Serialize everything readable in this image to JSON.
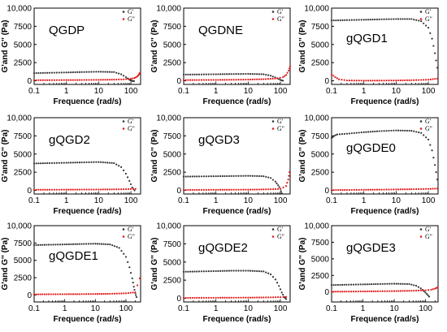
{
  "chart_data": [
    {
      "type": "scatter",
      "title": "QGDP",
      "xlabel": "Frequence (rad/s)",
      "ylabel": "G'and G'' (Pa)",
      "xscale": "log",
      "xlim": [
        0.1,
        200
      ],
      "ylim": [
        -500,
        10000
      ],
      "x_ticks": [
        "0.1",
        "1",
        "10",
        "100"
      ],
      "y_ticks": [
        "0",
        "2500",
        "5000",
        "7500",
        "10,000"
      ],
      "legend": "top-right",
      "series": [
        {
          "name": "G'",
          "color": "#333333",
          "x": [
            0.1,
            0.3,
            1,
            3,
            10,
            30,
            50,
            70,
            90,
            100,
            110,
            125
          ],
          "y": [
            1050,
            1100,
            1150,
            1200,
            1250,
            1200,
            900,
            500,
            150,
            50,
            -20,
            -40
          ]
        },
        {
          "name": "G''",
          "color": "#e31a1c",
          "x": [
            0.1,
            0.3,
            1,
            3,
            10,
            30,
            60,
            100,
            130,
            160,
            180,
            190
          ],
          "y": [
            80,
            90,
            100,
            110,
            130,
            160,
            200,
            280,
            380,
            600,
            900,
            1100
          ]
        }
      ]
    },
    {
      "type": "scatter",
      "title": "QGDNE",
      "xlabel": "Frequence (rad/s)",
      "ylabel": "G'and G'' (Pa)",
      "xscale": "log",
      "xlim": [
        0.1,
        200
      ],
      "ylim": [
        -500,
        10000
      ],
      "x_ticks": [
        "0.1",
        "1",
        "10",
        "100"
      ],
      "y_ticks": [
        "0",
        "2500",
        "5000",
        "7500",
        "10,000"
      ],
      "legend": "top-right",
      "series": [
        {
          "name": "G'",
          "color": "#333333",
          "x": [
            0.1,
            0.3,
            1,
            3,
            10,
            30,
            50,
            80,
            100,
            120
          ],
          "y": [
            850,
            870,
            900,
            930,
            950,
            900,
            700,
            350,
            120,
            10
          ]
        },
        {
          "name": "G''",
          "color": "#e31a1c",
          "x": [
            0.1,
            0.3,
            1,
            3,
            10,
            30,
            80,
            120,
            150,
            180,
            200
          ],
          "y": [
            100,
            110,
            120,
            140,
            170,
            220,
            320,
            500,
            800,
            1400,
            2000
          ]
        }
      ]
    },
    {
      "type": "scatter",
      "title": "gQGD1",
      "xlabel": "Frequence (rad/s)",
      "ylabel": "G'and G'' (Pa)",
      "xscale": "log",
      "xlim": [
        0.1,
        200
      ],
      "ylim": [
        -500,
        10000
      ],
      "x_ticks": [
        "0.1",
        "1",
        "10",
        "100"
      ],
      "y_ticks": [
        "0",
        "2500",
        "5000",
        "7500",
        "10,000"
      ],
      "legend": "top-right",
      "series": [
        {
          "name": "G'",
          "color": "#333333",
          "x": [
            0.1,
            0.3,
            1,
            3,
            10,
            30,
            60,
            100,
            130,
            160,
            190
          ],
          "y": [
            8300,
            8350,
            8400,
            8450,
            8500,
            8500,
            8200,
            7300,
            5800,
            3800,
            1800
          ]
        },
        {
          "name": "G''",
          "color": "#e31a1c",
          "x": [
            0.1,
            0.13,
            0.17,
            0.3,
            1,
            3,
            10,
            30,
            100,
            190
          ],
          "y": [
            900,
            500,
            200,
            50,
            20,
            30,
            50,
            80,
            150,
            300
          ]
        }
      ]
    },
    {
      "type": "scatter",
      "title": "gQGD2",
      "xlabel": "Frequence (rad/s)",
      "ylabel": "G'and G'' (Pa)",
      "xscale": "log",
      "xlim": [
        0.1,
        200
      ],
      "ylim": [
        -500,
        10000
      ],
      "x_ticks": [
        "0.1",
        "1",
        "10",
        "100"
      ],
      "y_ticks": [
        "0",
        "2500",
        "5000",
        "7500",
        "10,000"
      ],
      "legend": "top-right",
      "series": [
        {
          "name": "G'",
          "color": "#333333",
          "x": [
            0.1,
            0.3,
            1,
            3,
            10,
            30,
            50,
            70,
            90,
            110,
            130
          ],
          "y": [
            3700,
            3750,
            3800,
            3850,
            3900,
            3750,
            3200,
            2300,
            1300,
            400,
            0
          ]
        },
        {
          "name": "G''",
          "color": "#e31a1c",
          "x": [
            0.1,
            0.3,
            1,
            3,
            10,
            30,
            100,
            140
          ],
          "y": [
            80,
            90,
            100,
            110,
            120,
            140,
            180,
            220
          ]
        }
      ]
    },
    {
      "type": "scatter",
      "title": "gQGD3",
      "xlabel": "Frequence (rad/s)",
      "ylabel": "G'and G'' (Pa)",
      "xscale": "log",
      "xlim": [
        0.1,
        200
      ],
      "ylim": [
        -500,
        10000
      ],
      "x_ticks": [
        "0.1",
        "1",
        "10",
        "100"
      ],
      "y_ticks": [
        "0",
        "2500",
        "5000",
        "7500",
        "10,000"
      ],
      "legend": "top-right",
      "series": [
        {
          "name": "G'",
          "color": "#333333",
          "x": [
            0.1,
            0.3,
            1,
            3,
            10,
            30,
            50,
            70,
            85,
            100,
            110
          ],
          "y": [
            1900,
            1920,
            1950,
            1970,
            2000,
            1950,
            1700,
            1200,
            700,
            200,
            -400
          ]
        },
        {
          "name": "G''",
          "color": "#e31a1c",
          "x": [
            0.1,
            0.3,
            1,
            3,
            10,
            30,
            100,
            150,
            175,
            190
          ],
          "y": [
            60,
            70,
            80,
            90,
            100,
            130,
            200,
            600,
            1500,
            2500
          ]
        }
      ]
    },
    {
      "type": "scatter",
      "title": "gQGDE0",
      "xlabel": "Frequence (rad/s)",
      "ylabel": "G'and G'' (Pa)",
      "xscale": "log",
      "xlim": [
        0.1,
        200
      ],
      "ylim": [
        -500,
        10000
      ],
      "x_ticks": [
        "0.1",
        "1",
        "10",
        "100"
      ],
      "y_ticks": [
        "0",
        "2500",
        "5000",
        "7500",
        "10,000"
      ],
      "legend": "top-right",
      "series": [
        {
          "name": "G'",
          "color": "#333333",
          "x": [
            0.1,
            0.12,
            0.15,
            0.3,
            1,
            3,
            10,
            30,
            60,
            100,
            130,
            160,
            190
          ],
          "y": [
            7200,
            7500,
            7700,
            7800,
            8000,
            8150,
            8250,
            8200,
            7900,
            7000,
            5500,
            3500,
            1500
          ]
        },
        {
          "name": "G''",
          "color": "#e31a1c",
          "x": [
            0.1,
            0.3,
            1,
            3,
            10,
            30,
            100,
            190
          ],
          "y": [
            50,
            60,
            80,
            100,
            130,
            160,
            200,
            250
          ]
        }
      ]
    },
    {
      "type": "scatter",
      "title": "gQGDE1",
      "xlabel": "Frequence (rad/s)",
      "ylabel": "G'and G'' (Pa)",
      "xscale": "log",
      "xlim": [
        0.1,
        300
      ],
      "ylim": [
        -1000,
        10000
      ],
      "x_ticks": [
        "0.1",
        "1",
        "10",
        "100"
      ],
      "y_ticks": [
        "0",
        "2500",
        "5000",
        "7500",
        "10,000"
      ],
      "legend": "top-right",
      "series": [
        {
          "name": "G'",
          "color": "#333333",
          "x": [
            0.1,
            0.3,
            1,
            3,
            10,
            30,
            60,
            100,
            130,
            160,
            180,
            200,
            220
          ],
          "y": [
            7200,
            7250,
            7300,
            7350,
            7400,
            7300,
            6800,
            5500,
            4000,
            2400,
            1200,
            300,
            -300
          ]
        },
        {
          "name": "G''",
          "color": "#e31a1c",
          "x": [
            0.1,
            0.3,
            1,
            3,
            10,
            30,
            100,
            200,
            280
          ],
          "y": [
            100,
            110,
            120,
            130,
            150,
            180,
            250,
            400,
            2400
          ]
        }
      ]
    },
    {
      "type": "scatter",
      "title": "gQGDE2",
      "xlabel": "Frequence (rad/s)",
      "ylabel": "G'and G'' (Pa)",
      "xscale": "log",
      "xlim": [
        0.1,
        200
      ],
      "ylim": [
        -500,
        10000
      ],
      "x_ticks": [
        "0.1",
        "1",
        "10",
        "100"
      ],
      "y_ticks": [
        "0",
        "2500",
        "5000",
        "7500",
        "10,000"
      ],
      "legend": "top-right",
      "series": [
        {
          "name": "G'",
          "color": "#333333",
          "x": [
            0.1,
            0.3,
            1,
            3,
            10,
            30,
            50,
            70,
            90,
            110,
            130,
            150
          ],
          "y": [
            3650,
            3700,
            3750,
            3800,
            3800,
            3700,
            3300,
            2600,
            1700,
            800,
            200,
            -100
          ]
        },
        {
          "name": "G''",
          "color": "#e31a1c",
          "x": [
            0.1,
            0.3,
            1,
            3,
            10,
            30,
            100,
            150
          ],
          "y": [
            60,
            70,
            80,
            90,
            100,
            120,
            160,
            200
          ]
        }
      ]
    },
    {
      "type": "scatter",
      "title": "gQGDE3",
      "xlabel": "Frequence (rad/s)",
      "ylabel": "G'and G'' (Pa)",
      "xscale": "log",
      "xlim": [
        0.1,
        250
      ],
      "ylim": [
        -1500,
        10000
      ],
      "x_ticks": [
        "0.1",
        "1",
        "10",
        "100"
      ],
      "y_ticks": [
        "0",
        "2500",
        "5000",
        "7500",
        "10,000"
      ],
      "legend": "top-right",
      "series": [
        {
          "name": "G'",
          "color": "#333333",
          "x": [
            0.1,
            0.3,
            1,
            3,
            10,
            30,
            50,
            70,
            90,
            110,
            130
          ],
          "y": [
            1050,
            1100,
            1150,
            1200,
            1250,
            1200,
            950,
            550,
            100,
            -300,
            -700
          ]
        },
        {
          "name": "G''",
          "color": "#e31a1c",
          "x": [
            0.1,
            0.3,
            1,
            3,
            10,
            30,
            100,
            150,
            200,
            240
          ],
          "y": [
            50,
            70,
            90,
            110,
            140,
            180,
            260,
            350,
            500,
            700
          ]
        }
      ]
    }
  ]
}
